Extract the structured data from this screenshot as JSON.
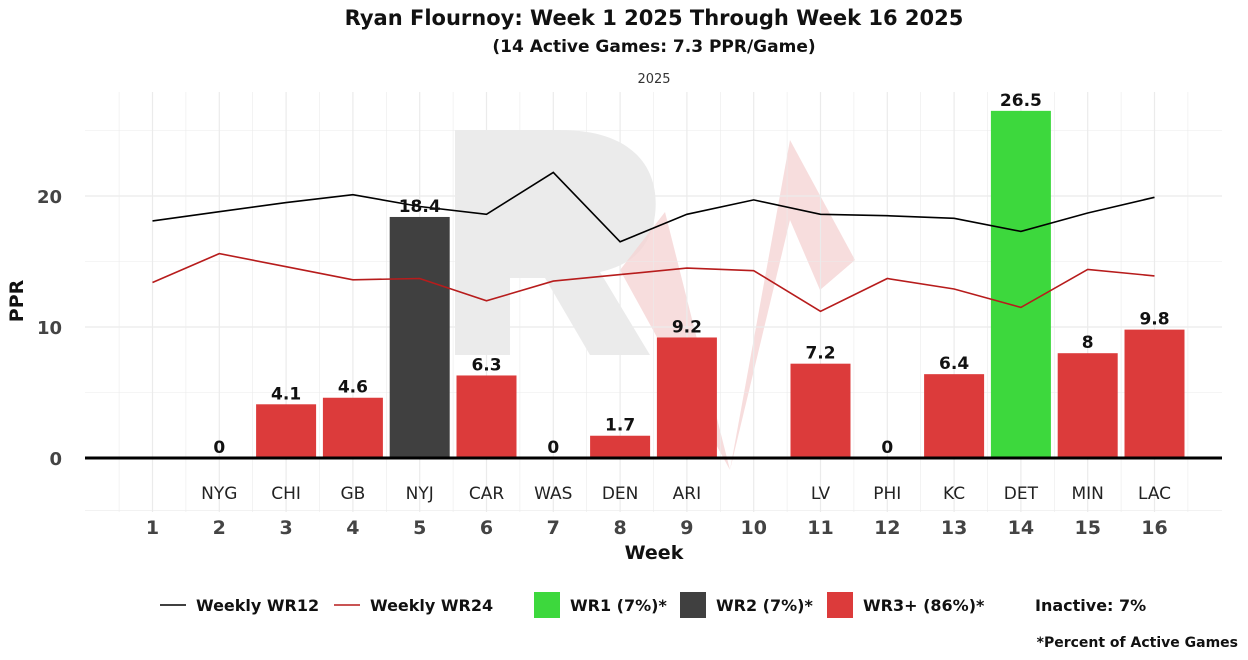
{
  "chart_data": {
    "type": "bar",
    "title": "Ryan Flournoy: Week 1 2025 Through Week 16 2025",
    "subtitle": "(14 Active Games: 7.3 PPR/Game)",
    "facet_label": "2025",
    "xlabel": "Week",
    "ylabel": "PPR",
    "ylim": [
      -4,
      27
    ],
    "yticks": [
      0,
      10,
      20
    ],
    "grid": true,
    "weeks": [
      1,
      2,
      3,
      4,
      5,
      6,
      7,
      8,
      9,
      10,
      11,
      12,
      13,
      14,
      15,
      16
    ],
    "opponents": [
      "",
      "NYG",
      "CHI",
      "GB",
      "NYJ",
      "CAR",
      "WAS",
      "DEN",
      "ARI",
      "",
      "LV",
      "PHI",
      "KC",
      "DET",
      "MIN",
      "LAC"
    ],
    "values": [
      null,
      0,
      4.1,
      4.6,
      18.4,
      6.3,
      0,
      1.7,
      9.2,
      null,
      7.2,
      0,
      6.4,
      26.5,
      8,
      9.8
    ],
    "value_labels": [
      "",
      "0",
      "4.1",
      "4.6",
      "18.4",
      "6.3",
      "0",
      "1.7",
      "9.2",
      "",
      "7.2",
      "0",
      "6.4",
      "26.5",
      "8",
      "9.8"
    ],
    "tiers": [
      "inactive",
      "WR3+",
      "WR3+",
      "WR3+",
      "WR2",
      "WR3+",
      "WR3+",
      "WR3+",
      "WR3+",
      "inactive",
      "WR3+",
      "WR3+",
      "WR3+",
      "WR1",
      "WR3+",
      "WR3+"
    ],
    "tier_colors": {
      "WR1": "#3dd83d",
      "WR2": "#404040",
      "WR3+": "#dc3b3b"
    },
    "series": [
      {
        "name": "Weekly WR12",
        "color": "#000000",
        "values": [
          18.1,
          18.8,
          19.5,
          20.1,
          19.2,
          18.6,
          21.8,
          16.5,
          18.6,
          19.7,
          18.6,
          18.5,
          18.3,
          17.3,
          18.7,
          19.9
        ]
      },
      {
        "name": "Weekly WR24",
        "color": "#b71c1c",
        "values": [
          13.4,
          15.6,
          14.6,
          13.6,
          13.7,
          12.0,
          13.5,
          14.0,
          14.5,
          14.3,
          11.2,
          13.7,
          12.9,
          11.5,
          14.4,
          13.9
        ]
      }
    ],
    "legend_position": "bottom"
  },
  "legend": {
    "wr12": "Weekly WR12",
    "wr24": "Weekly WR24",
    "wr1": "WR1 (7%)*",
    "wr2": "WR2 (7%)*",
    "wr3": "WR3+ (86%)*",
    "inactive": "Inactive: 7%"
  },
  "footnote": "*Percent of Active Games",
  "colors": {
    "watermark": "#e8e8e8",
    "watermark_accent": "#f5d5d5",
    "zero_line": "#000000",
    "grid": "#ebebeb"
  }
}
